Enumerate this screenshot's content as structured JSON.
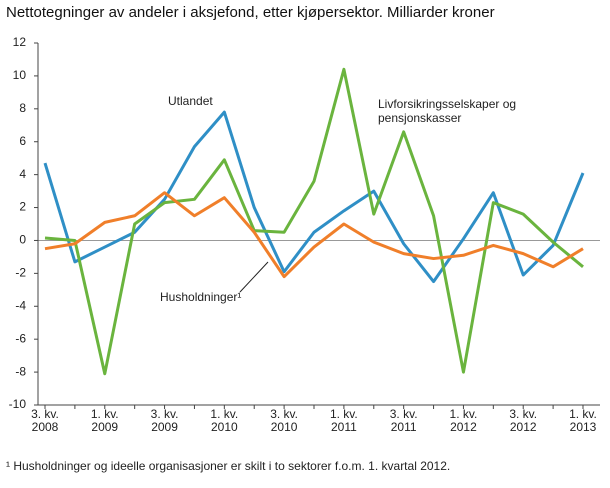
{
  "chart_data": {
    "type": "line",
    "title": "Nettotegninger av andeler i aksjefond, etter kjøpersektor. Milliarder kroner",
    "categories": [
      "3. kv. 2008",
      null,
      "1. kv. 2009",
      null,
      "3. kv. 2009",
      null,
      "1. kv. 2010",
      null,
      "3. kv. 2010",
      null,
      "1. kv. 2011",
      null,
      "3. kv. 2011",
      null,
      "1. kv. 2012",
      null,
      "3. kv. 2012",
      null,
      "1. kv. 2013"
    ],
    "series": [
      {
        "name": "Utlandet",
        "color": "#2f8fc6",
        "values": [
          4.7,
          -1.3,
          -0.4,
          0.5,
          2.5,
          5.7,
          7.8,
          2.0,
          -1.9,
          0.5,
          1.8,
          3.0,
          -0.2,
          -2.5,
          0.1,
          2.9,
          -2.1,
          -0.3,
          4.1
        ]
      },
      {
        "name": "Livforsikringsselskaper og pensjonskasser",
        "color": "#6ab43e",
        "values": [
          0.15,
          0.0,
          -8.1,
          1.0,
          2.3,
          2.5,
          4.9,
          0.6,
          0.5,
          3.6,
          10.4,
          1.6,
          6.6,
          1.5,
          -8.0,
          2.3,
          1.6,
          -0.1,
          -1.6
        ]
      },
      {
        "name": "Husholdninger¹",
        "color": "#f07f2a",
        "values": [
          -0.5,
          -0.2,
          1.1,
          1.5,
          2.9,
          1.5,
          2.6,
          0.5,
          -2.2,
          -0.4,
          1.0,
          -0.1,
          -0.8,
          -1.1,
          -0.9,
          -0.3,
          -0.8,
          -1.6,
          -0.5
        ]
      }
    ],
    "ylim": [
      -10,
      12
    ],
    "yticks": [
      -10,
      -8,
      -6,
      -4,
      -2,
      0,
      2,
      4,
      6,
      8,
      10,
      12
    ],
    "footnote": "¹ Husholdninger og ideelle organisasjoner er skilt i to sektorer f.o.m. 1. kvartal 2012."
  }
}
